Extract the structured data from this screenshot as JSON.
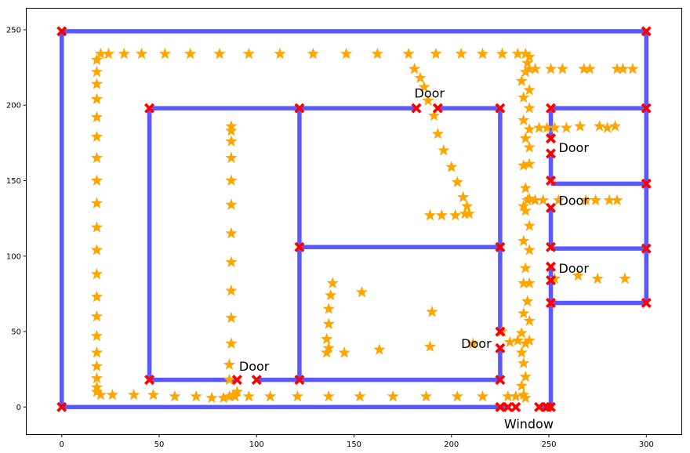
{
  "chart_data": {
    "type": "scatter",
    "title": "",
    "xlabel": "",
    "ylabel": "",
    "xlim": [
      -18,
      318
    ],
    "ylim": [
      -18,
      264
    ],
    "xticks": [
      0,
      50,
      100,
      150,
      200,
      250,
      300
    ],
    "yticks": [
      0,
      50,
      100,
      150,
      200,
      250
    ],
    "grid": false,
    "walls": {
      "color": "#0000ff",
      "segments": [
        [
          [
            0,
            0
          ],
          [
            0,
            249
          ]
        ],
        [
          [
            0,
            249
          ],
          [
            300,
            249
          ]
        ],
        [
          [
            300,
            249
          ],
          [
            300,
            69
          ]
        ],
        [
          [
            300,
            69
          ],
          [
            251,
            69
          ]
        ],
        [
          [
            251,
            69
          ],
          [
            251,
            0
          ]
        ],
        [
          [
            0,
            0
          ],
          [
            229,
            0
          ]
        ],
        [
          [
            245,
            0
          ],
          [
            251,
            0
          ]
        ],
        [
          [
            45,
            18
          ],
          [
            45,
            198
          ]
        ],
        [
          [
            45,
            198
          ],
          [
            182,
            198
          ]
        ],
        [
          [
            193,
            198
          ],
          [
            225,
            198
          ]
        ],
        [
          [
            45,
            18
          ],
          [
            90,
            18
          ]
        ],
        [
          [
            100,
            18
          ],
          [
            225,
            18
          ]
        ],
        [
          [
            225,
            18
          ],
          [
            225,
            39
          ]
        ],
        [
          [
            225,
            50
          ],
          [
            225,
            198
          ]
        ],
        [
          [
            122,
            18
          ],
          [
            122,
            198
          ]
        ],
        [
          [
            122,
            106
          ],
          [
            225,
            106
          ]
        ],
        [
          [
            251,
            69
          ],
          [
            251,
            93
          ]
        ],
        [
          [
            251,
            106
          ],
          [
            251,
            132
          ]
        ],
        [
          [
            251,
            150
          ],
          [
            251,
            168
          ]
        ],
        [
          [
            251,
            178
          ],
          [
            251,
            198
          ]
        ],
        [
          [
            251,
            198
          ],
          [
            300,
            198
          ]
        ],
        [
          [
            251,
            148
          ],
          [
            300,
            148
          ]
        ],
        [
          [
            251,
            105
          ],
          [
            300,
            105
          ]
        ]
      ]
    },
    "wall_points": {
      "color": "#ff0000",
      "marker": "X",
      "points": [
        [
          0,
          249
        ],
        [
          300,
          249
        ],
        [
          300,
          198
        ],
        [
          300,
          148
        ],
        [
          300,
          105
        ],
        [
          300,
          69
        ],
        [
          251,
          69
        ],
        [
          45,
          198
        ],
        [
          122,
          198
        ],
        [
          182,
          198
        ],
        [
          193,
          198
        ],
        [
          225,
          198
        ],
        [
          122,
          106
        ],
        [
          225,
          106
        ],
        [
          45,
          18
        ],
        [
          90,
          18
        ],
        [
          100,
          18
        ],
        [
          122,
          18
        ],
        [
          225,
          18
        ],
        [
          225,
          39
        ],
        [
          225,
          50
        ],
        [
          251,
          198
        ],
        [
          251,
          178
        ],
        [
          251,
          168
        ],
        [
          251,
          150
        ],
        [
          251,
          132
        ],
        [
          251,
          106
        ],
        [
          251,
          93
        ],
        [
          251,
          84
        ],
        [
          0,
          0
        ],
        [
          225,
          0
        ],
        [
          229,
          0
        ],
        [
          233,
          0
        ],
        [
          245,
          0
        ],
        [
          249,
          0
        ],
        [
          251,
          0
        ]
      ]
    },
    "trajectory": {
      "color": "#ffa500",
      "marker": "star",
      "points": [
        [
          18,
          230
        ],
        [
          18,
          222
        ],
        [
          18,
          214
        ],
        [
          18,
          204
        ],
        [
          18,
          192
        ],
        [
          18,
          179
        ],
        [
          18,
          165
        ],
        [
          18,
          150
        ],
        [
          18,
          135
        ],
        [
          18,
          119
        ],
        [
          18,
          104
        ],
        [
          18,
          88
        ],
        [
          18,
          73
        ],
        [
          18,
          60
        ],
        [
          18,
          47
        ],
        [
          18,
          36
        ],
        [
          18,
          27
        ],
        [
          18,
          19
        ],
        [
          18,
          13
        ],
        [
          18,
          10
        ],
        [
          20,
          234
        ],
        [
          24,
          234
        ],
        [
          32,
          234
        ],
        [
          41,
          234
        ],
        [
          53,
          234
        ],
        [
          66,
          234
        ],
        [
          81,
          234
        ],
        [
          96,
          234
        ],
        [
          112,
          234
        ],
        [
          129,
          234
        ],
        [
          146,
          234
        ],
        [
          162,
          234
        ],
        [
          178,
          234
        ],
        [
          192,
          234
        ],
        [
          205,
          234
        ],
        [
          216,
          234
        ],
        [
          226,
          234
        ],
        [
          234,
          234
        ],
        [
          238,
          234
        ],
        [
          240,
          232
        ],
        [
          239,
          228
        ],
        [
          238,
          222
        ],
        [
          236,
          216
        ],
        [
          240,
          210
        ],
        [
          237,
          205
        ],
        [
          240,
          198
        ],
        [
          237,
          190
        ],
        [
          240,
          184
        ],
        [
          238,
          178
        ],
        [
          240,
          172
        ],
        [
          237,
          160
        ],
        [
          240,
          161
        ],
        [
          238,
          145
        ],
        [
          240,
          138
        ],
        [
          237,
          133
        ],
        [
          238,
          130
        ],
        [
          240,
          120
        ],
        [
          237,
          110
        ],
        [
          240,
          104
        ],
        [
          238,
          92
        ],
        [
          240,
          82
        ],
        [
          237,
          82
        ],
        [
          239,
          70
        ],
        [
          237,
          62
        ],
        [
          240,
          57
        ],
        [
          236,
          49
        ],
        [
          238,
          42
        ],
        [
          240,
          44
        ],
        [
          236,
          36
        ],
        [
          237,
          29
        ],
        [
          238,
          20
        ],
        [
          236,
          14
        ],
        [
          237,
          8
        ],
        [
          238,
          6
        ],
        [
          20,
          8
        ],
        [
          26,
          8
        ],
        [
          37,
          8
        ],
        [
          47,
          8
        ],
        [
          58,
          7
        ],
        [
          69,
          7
        ],
        [
          77,
          6
        ],
        [
          83,
          6
        ],
        [
          86,
          7
        ],
        [
          88,
          8
        ],
        [
          89,
          7
        ],
        [
          90,
          10
        ],
        [
          96,
          7
        ],
        [
          107,
          7
        ],
        [
          121,
          7
        ],
        [
          137,
          7
        ],
        [
          153,
          7
        ],
        [
          170,
          7
        ],
        [
          187,
          7
        ],
        [
          203,
          7
        ],
        [
          216,
          7
        ],
        [
          229,
          7
        ],
        [
          233,
          7
        ],
        [
          87,
          186
        ],
        [
          87,
          183
        ],
        [
          87,
          176
        ],
        [
          87,
          165
        ],
        [
          87,
          150
        ],
        [
          87,
          134
        ],
        [
          87,
          115
        ],
        [
          87,
          96
        ],
        [
          87,
          77
        ],
        [
          87,
          59
        ],
        [
          87,
          42
        ],
        [
          86,
          28
        ],
        [
          86,
          18
        ],
        [
          181,
          224
        ],
        [
          184,
          218
        ],
        [
          186,
          212
        ],
        [
          188,
          203
        ],
        [
          191,
          193
        ],
        [
          193,
          181
        ],
        [
          196,
          170
        ],
        [
          200,
          159
        ],
        [
          203,
          149
        ],
        [
          206,
          139
        ],
        [
          208,
          133
        ],
        [
          209,
          128
        ],
        [
          207,
          128
        ],
        [
          202,
          127
        ],
        [
          195,
          127
        ],
        [
          189,
          127
        ],
        [
          240,
          224
        ],
        [
          243,
          224
        ],
        [
          251,
          224
        ],
        [
          257,
          224
        ],
        [
          268,
          224
        ],
        [
          271,
          224
        ],
        [
          285,
          224
        ],
        [
          288,
          224
        ],
        [
          293,
          224
        ],
        [
          245,
          185
        ],
        [
          249,
          185
        ],
        [
          253,
          185
        ],
        [
          259,
          185
        ],
        [
          266,
          186
        ],
        [
          276,
          186
        ],
        [
          280,
          185
        ],
        [
          284,
          186
        ],
        [
          239,
          137
        ],
        [
          243,
          137
        ],
        [
          247,
          137
        ],
        [
          255,
          137
        ],
        [
          269,
          137
        ],
        [
          274,
          137
        ],
        [
          281,
          137
        ],
        [
          285,
          137
        ],
        [
          253,
          85
        ],
        [
          265,
          87
        ],
        [
          275,
          85
        ],
        [
          289,
          85
        ],
        [
          139,
          82
        ],
        [
          138,
          74
        ],
        [
          137,
          65
        ],
        [
          137,
          55
        ],
        [
          136,
          45
        ],
        [
          137,
          39
        ],
        [
          136,
          36
        ],
        [
          145,
          36
        ],
        [
          154,
          76
        ],
        [
          163,
          38
        ],
        [
          189,
          40
        ],
        [
          190,
          63
        ],
        [
          211,
          42
        ],
        [
          226,
          50
        ],
        [
          230,
          43
        ],
        [
          234,
          44
        ]
      ]
    },
    "annotations": [
      {
        "text": "Door",
        "x": 181,
        "y": 205
      },
      {
        "text": "Door",
        "x": 255,
        "y": 169
      },
      {
        "text": "Door",
        "x": 255,
        "y": 134
      },
      {
        "text": "Door",
        "x": 255,
        "y": 89
      },
      {
        "text": "Door",
        "x": 205,
        "y": 39
      },
      {
        "text": "Door",
        "x": 91,
        "y": 24
      },
      {
        "text": "Window",
        "x": 227,
        "y": -14
      }
    ]
  }
}
